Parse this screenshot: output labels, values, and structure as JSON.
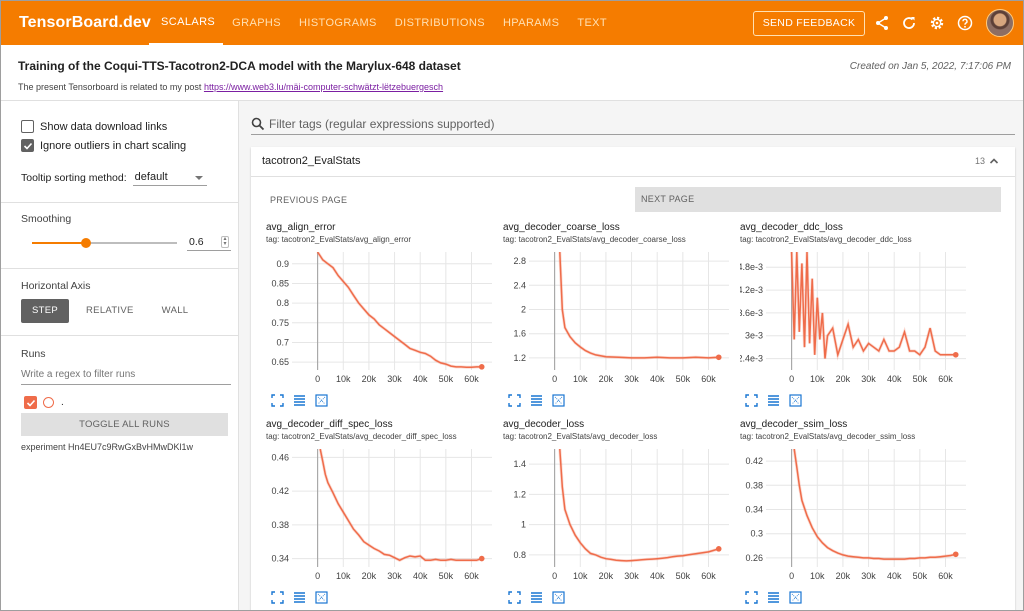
{
  "app": {
    "brand": "TensorBoard.dev",
    "tabs": [
      "SCALARS",
      "GRAPHS",
      "HISTOGRAMS",
      "DISTRIBUTIONS",
      "HPARAMS",
      "TEXT"
    ],
    "active_tab": "SCALARS",
    "feedback_label": "SEND FEEDBACK",
    "icons": [
      "share-icon",
      "refresh-icon",
      "settings-icon",
      "help-icon"
    ]
  },
  "header": {
    "title": "Training of the Coqui-TTS-Tacotron2-DCA model with the Marylux-648 dataset",
    "desc_prefix": "The present Tensorboard is related to my post ",
    "link": "https://www.web3.lu/mäi-computer-schwätzt-lëtzebuergesch",
    "created": "Created on Jan 5, 2022, 7:17:06 PM"
  },
  "sidebar": {
    "show_download": "Show data download links",
    "ignore_outliers": "Ignore outliers in chart scaling",
    "tooltip_label": "Tooltip sorting method:",
    "tooltip_value": "default",
    "smoothing_label": "Smoothing",
    "smoothing_value": "0.6",
    "smoothing_level": 0.6,
    "horizontal_axis_label": "Horizontal Axis",
    "axis_options": [
      "STEP",
      "RELATIVE",
      "WALL"
    ],
    "axis_active": "STEP",
    "runs_label": "Runs",
    "runs_filter_placeholder": "Write a regex to filter runs",
    "run_name": ".",
    "toggle_label": "TOGGLE ALL RUNS",
    "experiment_id": "experiment Hn4EU7c9RwGxBvHMwDKl1w"
  },
  "main": {
    "filter_placeholder": "Filter tags (regular expressions supported)",
    "group_title": "tacotron2_EvalStats",
    "group_count": "13",
    "prev_page": "PREVIOUS PAGE",
    "next_page": "NEXT PAGE"
  },
  "colors": {
    "accent": "#f57c00",
    "series": "#ef6c4a"
  },
  "chart_data": [
    {
      "type": "line",
      "title": "avg_align_error",
      "tag": "tag: tacotron2_EvalStats/avg_align_error",
      "x_ticks": [
        "0",
        "10k",
        "20k",
        "30k",
        "40k",
        "50k",
        "60k"
      ],
      "y_ticks": [
        "0.9",
        "0.85",
        "0.8",
        "0.75",
        "0.7",
        "0.65"
      ],
      "xlim": [
        -10000,
        68000
      ],
      "ylim": [
        0.63,
        0.93
      ],
      "x": [
        0,
        2000,
        4000,
        6000,
        8000,
        10000,
        12000,
        14000,
        16000,
        18000,
        20000,
        22000,
        24000,
        26000,
        28000,
        30000,
        32000,
        34000,
        36000,
        38000,
        40000,
        42000,
        44000,
        46000,
        48000,
        50000,
        52000,
        54000,
        56000,
        58000,
        60000,
        62000,
        64000
      ],
      "y": [
        0.93,
        0.91,
        0.9,
        0.89,
        0.87,
        0.855,
        0.84,
        0.82,
        0.8,
        0.785,
        0.77,
        0.76,
        0.745,
        0.735,
        0.725,
        0.715,
        0.705,
        0.695,
        0.685,
        0.68,
        0.675,
        0.672,
        0.665,
        0.655,
        0.648,
        0.645,
        0.64,
        0.638,
        0.638,
        0.637,
        0.637,
        0.638,
        0.638
      ]
    },
    {
      "type": "line",
      "title": "avg_decoder_coarse_loss",
      "tag": "tag: tacotron2_EvalStats/avg_decoder_coarse_loss",
      "x_ticks": [
        "0",
        "10k",
        "20k",
        "30k",
        "40k",
        "50k",
        "60k"
      ],
      "y_ticks": [
        "2.8",
        "2.4",
        "2",
        "1.6",
        "1.2"
      ],
      "xlim": [
        -10000,
        68000
      ],
      "ylim": [
        1.0,
        2.95
      ],
      "x": [
        2000,
        3000,
        4000,
        6000,
        8000,
        10000,
        12000,
        14000,
        16000,
        20000,
        25000,
        30000,
        35000,
        40000,
        45000,
        50000,
        55000,
        60000,
        64000
      ],
      "y": [
        2.95,
        2.0,
        1.7,
        1.55,
        1.45,
        1.38,
        1.32,
        1.28,
        1.25,
        1.22,
        1.21,
        1.2,
        1.2,
        1.21,
        1.2,
        1.2,
        1.21,
        1.2,
        1.21
      ]
    },
    {
      "type": "line",
      "title": "avg_decoder_ddc_loss",
      "tag": "tag: tacotron2_EvalStats/avg_decoder_ddc_loss",
      "x_ticks": [
        "0",
        "10k",
        "20k",
        "30k",
        "40k",
        "50k",
        "60k"
      ],
      "y_ticks": [
        "4.8e-3",
        "4.2e-3",
        "3.6e-3",
        "3e-3",
        "2.4e-3"
      ],
      "xlim": [
        -10000,
        68000
      ],
      "ylim": [
        0.0021,
        0.0052
      ],
      "x": [
        0,
        1000,
        2000,
        3000,
        4000,
        5000,
        6000,
        7000,
        8000,
        9000,
        10000,
        11000,
        12000,
        13000,
        14000,
        16000,
        18000,
        20000,
        22000,
        24000,
        26000,
        28000,
        30000,
        32000,
        34000,
        36000,
        38000,
        40000,
        42000,
        44000,
        46000,
        48000,
        50000,
        52000,
        54000,
        56000,
        58000,
        60000,
        62000,
        64000
      ],
      "y": [
        0.0052,
        0.0029,
        0.0052,
        0.0031,
        0.0049,
        0.0027,
        0.0052,
        0.0028,
        0.0045,
        0.0025,
        0.004,
        0.0029,
        0.0036,
        0.0024,
        0.003,
        0.0032,
        0.0025,
        0.0029,
        0.0033,
        0.0027,
        0.0029,
        0.0026,
        0.0028,
        0.0027,
        0.0026,
        0.0029,
        0.0026,
        0.0026,
        0.0027,
        0.0031,
        0.0026,
        0.0026,
        0.0025,
        0.0027,
        0.0032,
        0.0026,
        0.0025,
        0.0025,
        0.0025,
        0.0025
      ]
    },
    {
      "type": "line",
      "title": "avg_decoder_diff_spec_loss",
      "tag": "tag: tacotron2_EvalStats/avg_decoder_diff_spec_loss",
      "x_ticks": [
        "0",
        "10k",
        "20k",
        "30k",
        "40k",
        "50k",
        "60k"
      ],
      "y_ticks": [
        "0.46",
        "0.42",
        "0.38",
        "0.34"
      ],
      "xlim": [
        -10000,
        68000
      ],
      "ylim": [
        0.33,
        0.47
      ],
      "x": [
        1000,
        2000,
        3000,
        4000,
        6000,
        8000,
        10000,
        12000,
        14000,
        16000,
        18000,
        20000,
        22000,
        24000,
        26000,
        28000,
        30000,
        32000,
        34000,
        36000,
        38000,
        40000,
        42000,
        44000,
        46000,
        48000,
        50000,
        52000,
        54000,
        56000,
        58000,
        60000,
        62000,
        64000
      ],
      "y": [
        0.47,
        0.455,
        0.44,
        0.43,
        0.418,
        0.405,
        0.395,
        0.385,
        0.375,
        0.368,
        0.36,
        0.356,
        0.352,
        0.349,
        0.345,
        0.344,
        0.341,
        0.338,
        0.341,
        0.343,
        0.342,
        0.343,
        0.338,
        0.338,
        0.339,
        0.338,
        0.338,
        0.339,
        0.338,
        0.338,
        0.338,
        0.338,
        0.338,
        0.34
      ]
    },
    {
      "type": "line",
      "title": "avg_decoder_loss",
      "tag": "tag: tacotron2_EvalStats/avg_decoder_loss",
      "x_ticks": [
        "0",
        "10k",
        "20k",
        "30k",
        "40k",
        "50k",
        "60k"
      ],
      "y_ticks": [
        "1.4",
        "1.2",
        "1",
        "0.8"
      ],
      "xlim": [
        -10000,
        68000
      ],
      "ylim": [
        0.72,
        1.5
      ],
      "x": [
        2000,
        3000,
        4000,
        6000,
        8000,
        10000,
        12000,
        14000,
        16000,
        18000,
        20000,
        22000,
        24000,
        26000,
        28000,
        30000,
        32000,
        34000,
        36000,
        38000,
        40000,
        42000,
        44000,
        46000,
        48000,
        50000,
        52000,
        54000,
        56000,
        58000,
        60000,
        62000,
        64000
      ],
      "y": [
        1.5,
        1.25,
        1.1,
        1.0,
        0.93,
        0.88,
        0.84,
        0.81,
        0.8,
        0.785,
        0.775,
        0.77,
        0.765,
        0.762,
        0.76,
        0.762,
        0.765,
        0.768,
        0.77,
        0.772,
        0.775,
        0.778,
        0.782,
        0.788,
        0.792,
        0.795,
        0.8,
        0.805,
        0.81,
        0.815,
        0.82,
        0.83,
        0.84
      ]
    },
    {
      "type": "line",
      "title": "avg_decoder_ssim_loss",
      "tag": "tag: tacotron2_EvalStats/avg_decoder_ssim_loss",
      "x_ticks": [
        "0",
        "10k",
        "20k",
        "30k",
        "40k",
        "50k",
        "60k"
      ],
      "y_ticks": [
        "0.42",
        "0.38",
        "0.34",
        "0.3",
        "0.26"
      ],
      "xlim": [
        -10000,
        68000
      ],
      "ylim": [
        0.245,
        0.44
      ],
      "x": [
        1000,
        2000,
        3000,
        4000,
        6000,
        8000,
        10000,
        12000,
        14000,
        16000,
        18000,
        20000,
        22000,
        24000,
        26000,
        28000,
        30000,
        32000,
        34000,
        36000,
        38000,
        40000,
        42000,
        44000,
        46000,
        48000,
        50000,
        52000,
        54000,
        56000,
        58000,
        60000,
        62000,
        64000
      ],
      "y": [
        0.44,
        0.41,
        0.38,
        0.355,
        0.33,
        0.31,
        0.295,
        0.285,
        0.277,
        0.272,
        0.268,
        0.265,
        0.263,
        0.262,
        0.261,
        0.26,
        0.26,
        0.259,
        0.259,
        0.258,
        0.258,
        0.258,
        0.258,
        0.258,
        0.259,
        0.259,
        0.26,
        0.26,
        0.261,
        0.261,
        0.262,
        0.263,
        0.264,
        0.266
      ]
    }
  ]
}
